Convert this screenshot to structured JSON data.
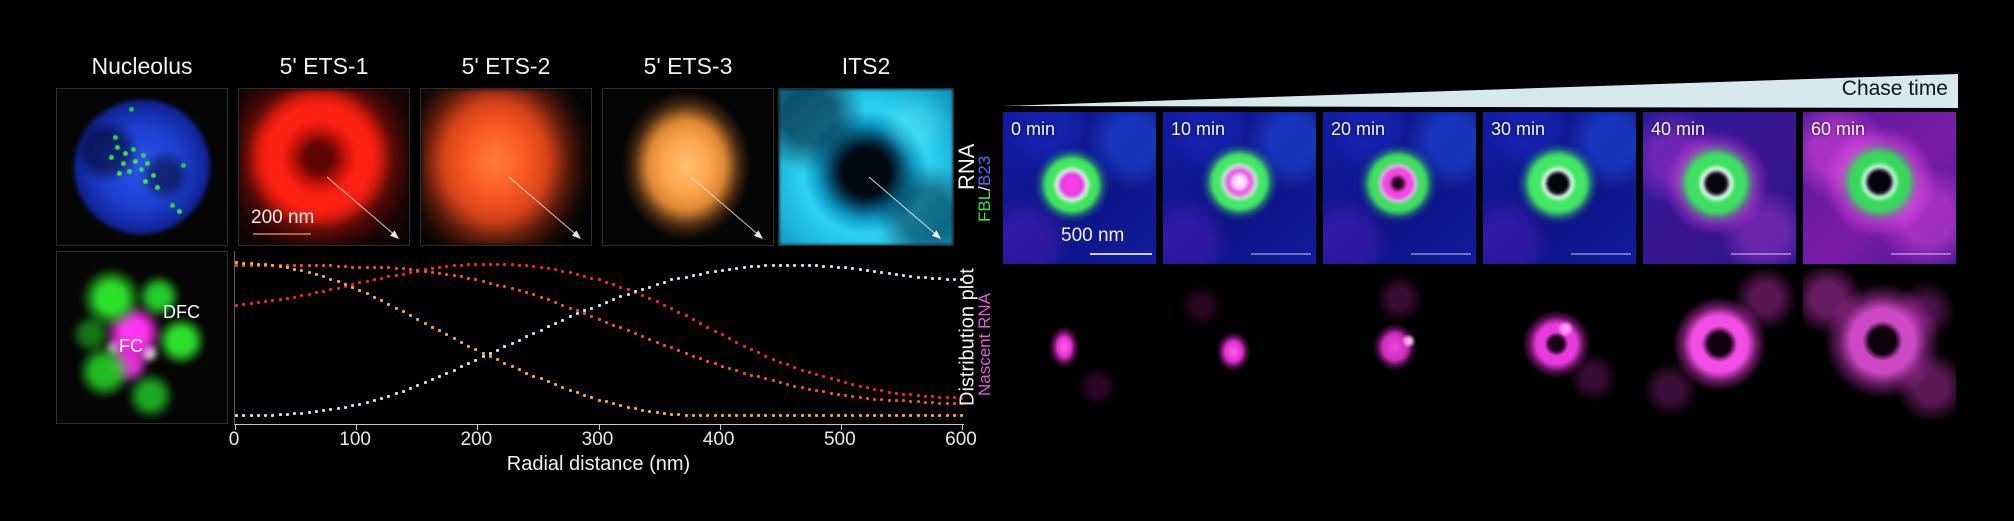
{
  "figure": {
    "left_panel": {
      "columns": [
        {
          "title": "Nucleolus"
        },
        {
          "title": "5' ETS-1"
        },
        {
          "title": "5' ETS-2"
        },
        {
          "title": "5' ETS-3"
        },
        {
          "title": "ITS2"
        }
      ],
      "row1_label": "RNA",
      "row2_label": "Distribution plot",
      "scale_bar": "200 nm",
      "inset_labels": {
        "dfc": "DFC",
        "fc": "FC"
      }
    },
    "right_panel": {
      "chase_label": "Chase time",
      "wedge_color": "#d6e9ee",
      "timepoints": [
        "0 min",
        "10 min",
        "20 min",
        "30 min",
        "40 min",
        "60 min"
      ],
      "row1_label_parts": [
        {
          "text": "FBL",
          "color": "#3fe049"
        },
        {
          "text": " / ",
          "color": "#e8eef2"
        },
        {
          "text": "B23",
          "color": "#4f6cff"
        }
      ],
      "row2_label": "Nascent RNA",
      "scale_bar": "500 nm"
    }
  },
  "chart_data": {
    "type": "line",
    "style": "dotted",
    "title": "",
    "xlabel": "Radial distance (nm)",
    "ylabel": "",
    "xlim": [
      0,
      600
    ],
    "ylim": [
      0,
      1
    ],
    "x_ticks": [
      0,
      100,
      200,
      300,
      400,
      500,
      600
    ],
    "grid": false,
    "legend": "none",
    "x": [
      0,
      20,
      40,
      60,
      80,
      100,
      120,
      140,
      160,
      180,
      200,
      220,
      240,
      260,
      280,
      300,
      320,
      340,
      360,
      380,
      400,
      420,
      440,
      460,
      480,
      500,
      520,
      540,
      560,
      580,
      600
    ],
    "series": [
      {
        "name": "5' ETS-1",
        "color": "#ff2318",
        "values": [
          0.72,
          0.74,
          0.76,
          0.79,
          0.82,
          0.86,
          0.89,
          0.92,
          0.95,
          0.97,
          0.98,
          0.98,
          0.97,
          0.95,
          0.92,
          0.88,
          0.83,
          0.77,
          0.7,
          0.62,
          0.54,
          0.46,
          0.39,
          0.33,
          0.28,
          0.24,
          0.2,
          0.17,
          0.15,
          0.14,
          0.13
        ]
      },
      {
        "name": "5' ETS-2",
        "color": "#f05223",
        "values": [
          0.97,
          0.97,
          0.97,
          0.97,
          0.97,
          0.96,
          0.96,
          0.95,
          0.93,
          0.91,
          0.88,
          0.84,
          0.8,
          0.75,
          0.69,
          0.63,
          0.57,
          0.51,
          0.45,
          0.39,
          0.34,
          0.29,
          0.25,
          0.21,
          0.18,
          0.15,
          0.13,
          0.12,
          0.11,
          0.1,
          0.1
        ]
      },
      {
        "name": "5' ETS-3",
        "color": "#ffa245",
        "values": [
          0.99,
          0.98,
          0.96,
          0.93,
          0.88,
          0.82,
          0.75,
          0.67,
          0.59,
          0.51,
          0.43,
          0.36,
          0.29,
          0.23,
          0.17,
          0.12,
          0.08,
          0.05,
          0.03,
          0.02,
          0.02,
          0.02,
          0.02,
          0.02,
          0.02,
          0.02,
          0.02,
          0.02,
          0.02,
          0.02,
          0.02
        ]
      },
      {
        "name": "ITS2",
        "color": "#c9e0ee",
        "values": [
          0.02,
          0.02,
          0.03,
          0.04,
          0.06,
          0.09,
          0.13,
          0.18,
          0.24,
          0.31,
          0.38,
          0.45,
          0.52,
          0.59,
          0.66,
          0.72,
          0.78,
          0.83,
          0.88,
          0.91,
          0.94,
          0.96,
          0.97,
          0.97,
          0.97,
          0.96,
          0.94,
          0.92,
          0.9,
          0.89,
          0.88
        ]
      }
    ]
  }
}
